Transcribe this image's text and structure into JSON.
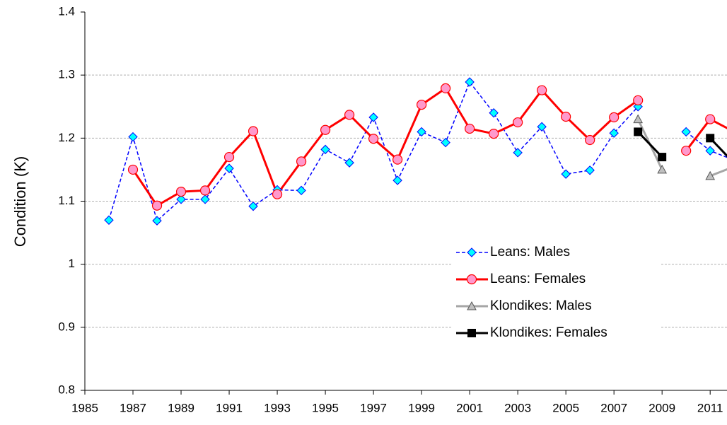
{
  "chart_data": {
    "type": "line",
    "y_label": "Condition (K)",
    "x": [
      1986,
      1987,
      1988,
      1989,
      1990,
      1991,
      1992,
      1993,
      1994,
      1995,
      1996,
      1997,
      1998,
      1999,
      2000,
      2001,
      2002,
      2003,
      2004,
      2005,
      2006,
      2007,
      2008,
      2009,
      2010,
      2011,
      2012
    ],
    "series": [
      {
        "name": "Leans: Males",
        "color": "#0000ff",
        "marker": "diamond",
        "dashed": true,
        "values": [
          1.07,
          1.202,
          1.069,
          1.103,
          1.103,
          1.152,
          1.092,
          1.118,
          1.117,
          1.182,
          1.161,
          1.233,
          1.133,
          1.21,
          1.193,
          1.289,
          1.24,
          1.177,
          1.218,
          1.143,
          1.149,
          1.208,
          1.25,
          null,
          1.21,
          1.18,
          1.165
        ]
      },
      {
        "name": "Leans: Females",
        "color": "#ff0000",
        "marker": "circle",
        "dashed": false,
        "values": [
          null,
          1.15,
          1.093,
          1.115,
          1.117,
          1.17,
          1.211,
          1.111,
          1.163,
          1.213,
          1.237,
          1.199,
          1.166,
          1.253,
          1.279,
          1.215,
          1.207,
          1.225,
          1.276,
          1.234,
          1.197,
          1.233,
          1.26,
          null,
          1.18,
          1.23,
          1.21
        ]
      },
      {
        "name": "Klondikes: Males",
        "color": "#a6a6a6",
        "marker": "triangle",
        "dashed": false,
        "values": [
          null,
          null,
          null,
          null,
          null,
          null,
          null,
          null,
          null,
          null,
          null,
          null,
          null,
          null,
          null,
          null,
          null,
          null,
          null,
          null,
          null,
          null,
          1.23,
          1.15,
          null,
          1.14,
          1.155
        ]
      },
      {
        "name": "Klondikes: Females",
        "color": "#000000",
        "marker": "square",
        "dashed": false,
        "values": [
          null,
          null,
          null,
          null,
          null,
          null,
          null,
          null,
          null,
          null,
          null,
          null,
          null,
          null,
          null,
          null,
          null,
          null,
          null,
          null,
          null,
          null,
          1.21,
          1.17,
          null,
          1.2,
          1.16
        ]
      }
    ],
    "xlim": [
      1985,
      2011.7
    ],
    "xticks": [
      1985,
      1987,
      1989,
      1991,
      1993,
      1995,
      1997,
      1999,
      2001,
      2003,
      2005,
      2007,
      2009,
      2011
    ],
    "ylim": [
      0.8,
      1.4
    ],
    "yticks": [
      0.8,
      0.9,
      1,
      1.1,
      1.2,
      1.3,
      1.4
    ],
    "grid": true,
    "legend": "center"
  }
}
